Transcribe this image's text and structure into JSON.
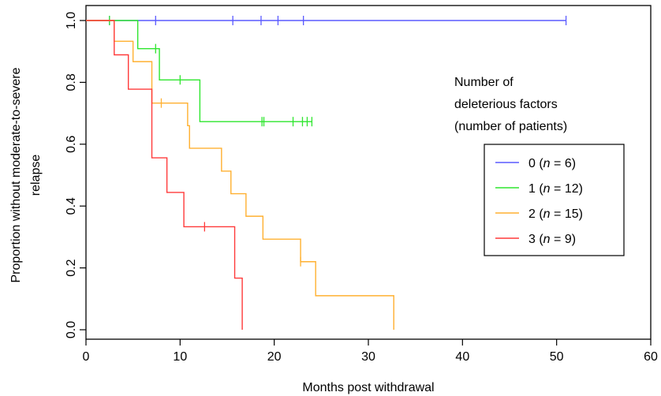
{
  "chart_data": {
    "type": "line",
    "subtype": "kaplan-meier",
    "xlabel": "Months post withdrawal",
    "ylabel_lines": [
      "Proportion without moderate-to-severe",
      "relapse"
    ],
    "xlim": [
      0,
      60
    ],
    "ylim": [
      0.0,
      1.0
    ],
    "xticks": [
      "0",
      "10",
      "20",
      "30",
      "40",
      "50",
      "60"
    ],
    "yticks": [
      "0.0",
      "0.2",
      "0.4",
      "0.6",
      "0.8",
      "1.0"
    ],
    "grid": false,
    "legend": {
      "position": "right",
      "title_lines": [
        "Number of",
        "deleterious factors",
        "(number of patients)"
      ],
      "entries": [
        {
          "prefix": "0 (",
          "n_var": "n",
          "suffix": " = 6)"
        },
        {
          "prefix": "1 (",
          "n_var": "n",
          "suffix": " = 12)"
        },
        {
          "prefix": "2 (",
          "n_var": "n",
          "suffix": " = 15)"
        },
        {
          "prefix": "3 (",
          "n_var": "n",
          "suffix": " = 9)"
        }
      ]
    },
    "series": [
      {
        "name": "0 (n = 6)",
        "color": "#5a5aff",
        "steps": [
          [
            0,
            1.0
          ],
          [
            51.0,
            1.0
          ]
        ],
        "censored": [
          [
            2.5,
            1.0
          ],
          [
            7.4,
            1.0
          ],
          [
            15.6,
            1.0
          ],
          [
            18.6,
            1.0
          ],
          [
            20.4,
            1.0
          ],
          [
            23.1,
            1.0
          ],
          [
            51.0,
            1.0
          ]
        ]
      },
      {
        "name": "1 (n = 12)",
        "color": "#2ee62e",
        "steps": [
          [
            0,
            1.0
          ],
          [
            5.5,
            0.909
          ],
          [
            7.8,
            0.808
          ],
          [
            12.1,
            0.673
          ],
          [
            24.0,
            0.673
          ]
        ],
        "censored": [
          [
            2.5,
            1.0
          ],
          [
            7.4,
            0.909
          ],
          [
            10.0,
            0.808
          ],
          [
            18.7,
            0.673
          ],
          [
            18.9,
            0.673
          ],
          [
            22.0,
            0.673
          ],
          [
            23.0,
            0.673
          ],
          [
            23.5,
            0.673
          ],
          [
            24.0,
            0.673
          ]
        ]
      },
      {
        "name": "2 (n = 15)",
        "color": "#ffb030",
        "steps": [
          [
            0,
            1.0
          ],
          [
            3.0,
            0.933
          ],
          [
            5.0,
            0.867
          ],
          [
            7.0,
            0.733
          ],
          [
            10.8,
            0.66
          ],
          [
            11.0,
            0.587
          ],
          [
            14.4,
            0.513
          ],
          [
            15.4,
            0.44
          ],
          [
            17.0,
            0.367
          ],
          [
            18.8,
            0.293
          ],
          [
            22.8,
            0.22
          ],
          [
            24.4,
            0.11
          ],
          [
            32.7,
            0.0
          ]
        ],
        "censored": [
          [
            8.0,
            0.733
          ],
          [
            22.8,
            0.22
          ]
        ]
      },
      {
        "name": "3 (n = 9)",
        "color": "#ff3a3a",
        "steps": [
          [
            0,
            1.0
          ],
          [
            3.0,
            0.889
          ],
          [
            4.5,
            0.778
          ],
          [
            7.0,
            0.556
          ],
          [
            8.6,
            0.444
          ],
          [
            10.4,
            0.333
          ],
          [
            15.8,
            0.167
          ],
          [
            16.6,
            0.0
          ]
        ],
        "censored": [
          [
            12.6,
            0.333
          ]
        ]
      }
    ]
  }
}
